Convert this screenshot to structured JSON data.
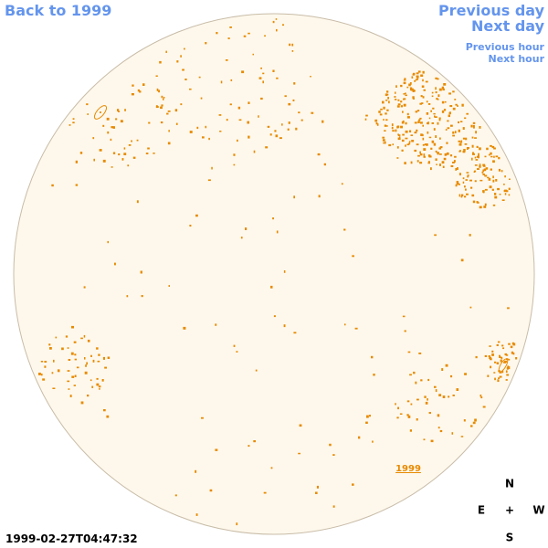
{
  "header": {
    "back": "Back to 1999",
    "previous_day": "Previous day",
    "next_day": "Next day",
    "previous_hour": "Previous hour",
    "next_hour": "Next hour"
  },
  "map": {
    "label": "1999"
  },
  "timestamp": "1999-02-27T04:47:32",
  "compass": {
    "north": "N",
    "east": "E",
    "center": "+",
    "west": "W",
    "south": "S"
  }
}
